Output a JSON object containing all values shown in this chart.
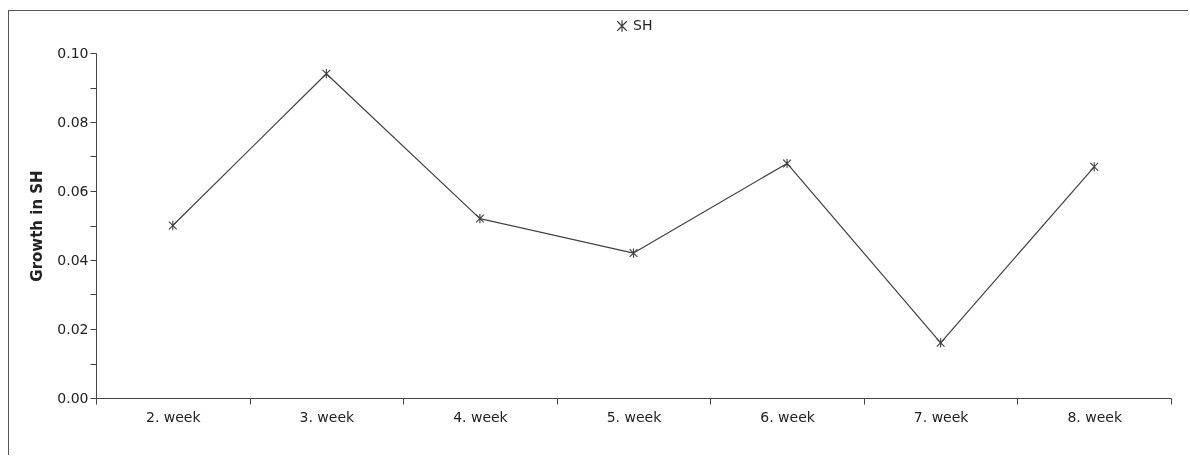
{
  "chart_data": {
    "type": "line",
    "ylabel": "Growth in SH",
    "categories": [
      "2. week",
      "3. week",
      "4. week",
      "5. week",
      "6. week",
      "7. week",
      "8. week"
    ],
    "series": [
      {
        "name": "SH",
        "color": "#404040",
        "values": [
          0.05,
          0.094,
          0.052,
          0.042,
          0.068,
          0.016,
          0.067
        ]
      }
    ],
    "ylim": [
      0,
      0.1
    ],
    "yticks": [
      {
        "value": 0,
        "label": "0.00"
      },
      {
        "value": 0.01,
        "label": null
      },
      {
        "value": 0.02,
        "label": "0.02"
      },
      {
        "value": 0.03,
        "label": null
      },
      {
        "value": 0.04,
        "label": "0.04"
      },
      {
        "value": 0.05,
        "label": null
      },
      {
        "value": 0.06,
        "label": "0.06"
      },
      {
        "value": 0.07,
        "label": null
      },
      {
        "value": 0.08,
        "label": "0.08"
      },
      {
        "value": 0.09,
        "label": null
      },
      {
        "value": 0.1,
        "label": "0.10"
      }
    ],
    "grid": false,
    "legend": "top",
    "marker": "cross",
    "line_style": "solid"
  }
}
